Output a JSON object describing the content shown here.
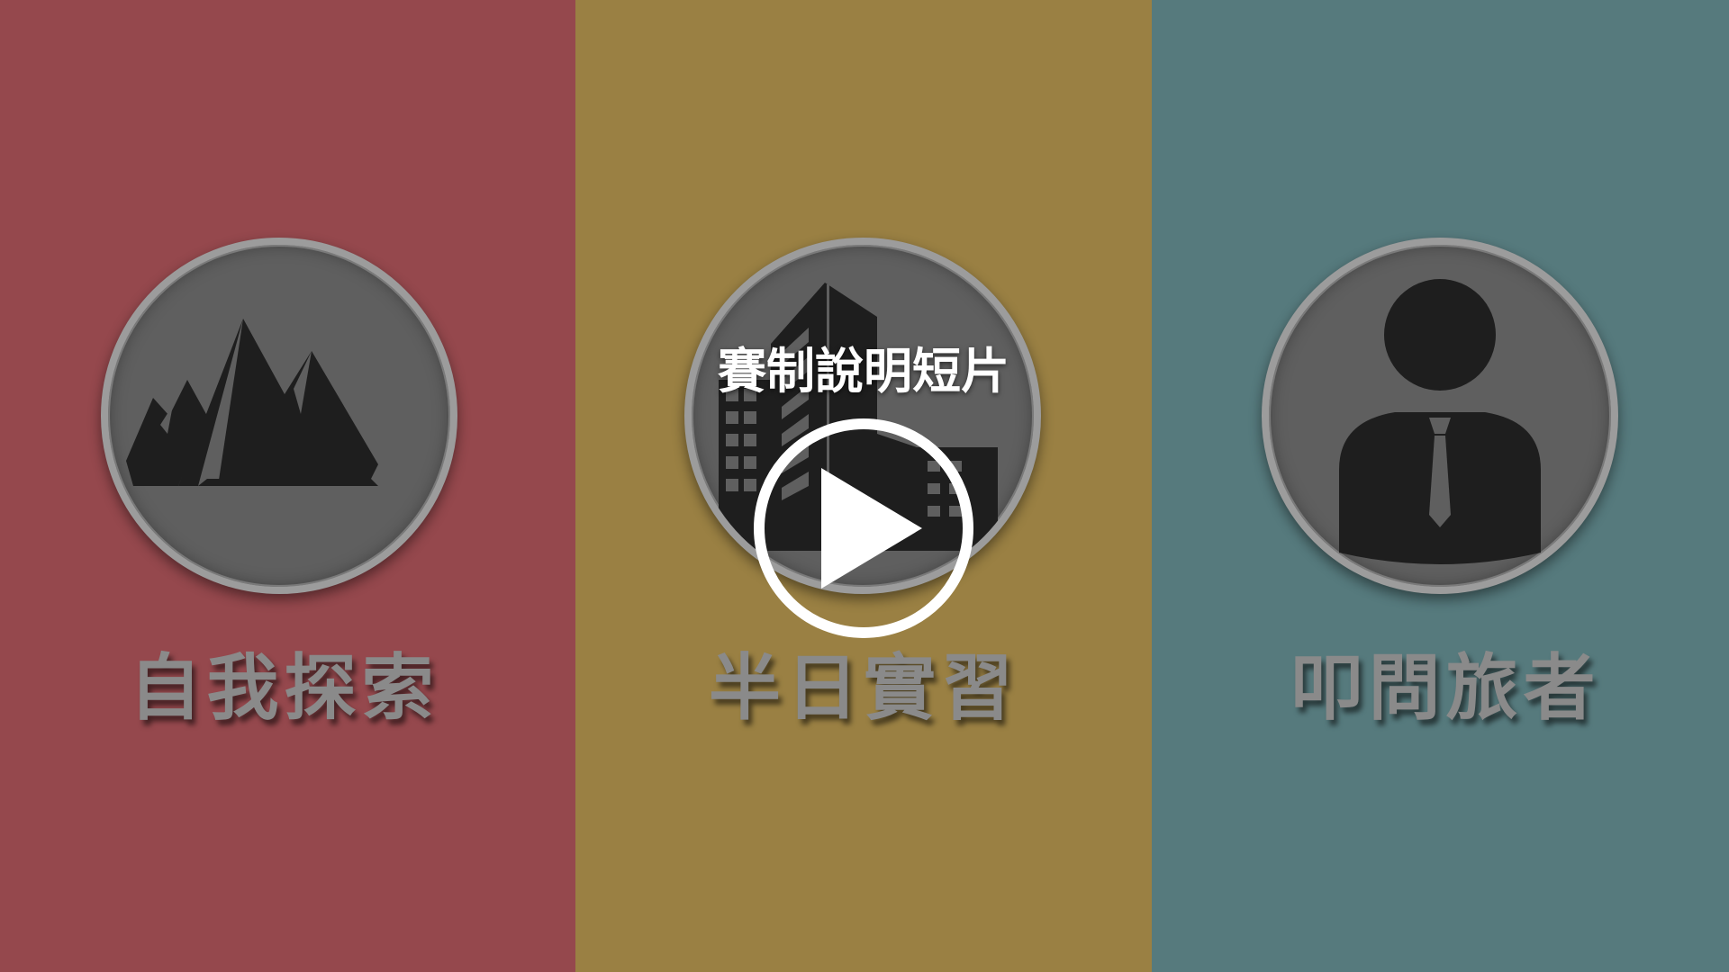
{
  "panels": [
    {
      "label": "自我探索",
      "icon": "mountain-icon",
      "color": "#95484d"
    },
    {
      "label": "半日實習",
      "icon": "building-icon",
      "color": "#9a8043"
    },
    {
      "label": "叩問旅者",
      "icon": "businessman-icon",
      "color": "#567a7d"
    }
  ],
  "video": {
    "title": "賽制說明短片",
    "play_icon": "play-icon"
  }
}
